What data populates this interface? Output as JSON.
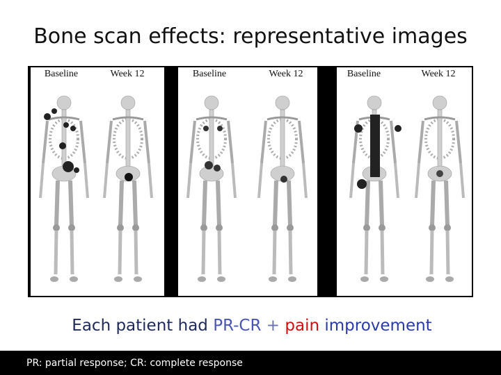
{
  "title": "Bone scan effects: representative images",
  "panels": [
    {
      "labels": [
        "Baseline",
        "Week 12"
      ]
    },
    {
      "labels": [
        "Baseline",
        "Week 12"
      ]
    },
    {
      "labels": [
        "Baseline",
        "Week 12"
      ]
    }
  ],
  "caption": {
    "parts": [
      "Each patient had",
      "PR-CR",
      "+",
      "pain",
      "improvement"
    ]
  },
  "footnote": "PR: partial response; CR: complete response"
}
